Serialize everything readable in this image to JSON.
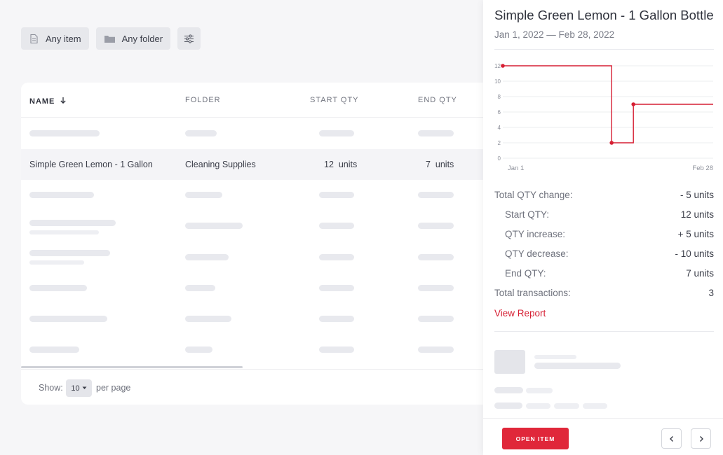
{
  "filters": {
    "item_label": "Any item",
    "folder_label": "Any folder"
  },
  "table": {
    "columns": {
      "name": "NAME",
      "folder": "FOLDER",
      "start_qty": "START QTY",
      "end_qty": "END QTY"
    },
    "selected_row": {
      "name": "Simple Green Lemon - 1 Gallon",
      "folder": "Cleaning Supplies",
      "start_qty": "12  units",
      "end_qty": "7  units"
    },
    "pagination": {
      "show_label": "Show:",
      "page_size": "10",
      "per_page_label": "per page"
    }
  },
  "panel": {
    "title": "Simple Green Lemon - 1 Gallon Bottle",
    "date_range": "Jan 1, 2022 — Feb 28, 2022",
    "stats": [
      {
        "label": "Total QTY change:",
        "value": "- 5 units"
      },
      {
        "label": "Start QTY:",
        "value": "12 units"
      },
      {
        "label": "QTY increase:",
        "value": "+ 5 units"
      },
      {
        "label": "QTY decrease:",
        "value": "- 10 units"
      },
      {
        "label": "End QTY:",
        "value": "7 units"
      },
      {
        "label": "Total transactions:",
        "value": "3"
      }
    ],
    "view_report_label": "View Report",
    "open_item_label": "OPEN ITEM"
  },
  "colors": {
    "accent": "#e0273a",
    "line": "#d61f33"
  },
  "chart_data": {
    "type": "line",
    "step": true,
    "x_tick_labels": [
      "Jan 1",
      "Feb 28"
    ],
    "y_ticks": [
      0,
      2,
      4,
      6,
      8,
      10,
      12
    ],
    "ylim": [
      0,
      12
    ],
    "points": [
      {
        "x": "Jan 1",
        "y": 12
      },
      {
        "x": "Jan 31",
        "y": 2
      },
      {
        "x": "Feb 6",
        "y": 7
      },
      {
        "x": "Feb 28",
        "y": 7
      }
    ],
    "grid": true
  }
}
